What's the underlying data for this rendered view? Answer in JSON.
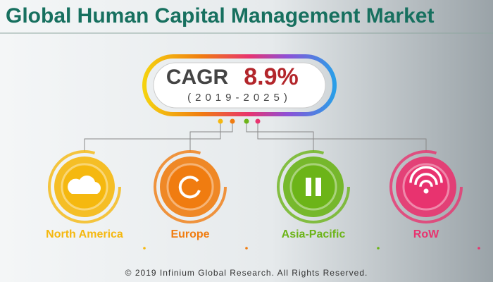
{
  "header": {
    "title": "Global Human Capital Management Market"
  },
  "cagr": {
    "label": "CAGR",
    "value": "8.9%",
    "period": "(2019-2025)"
  },
  "regions": [
    {
      "name": "North America",
      "color": "#f5b80f"
    },
    {
      "name": "Europe",
      "color": "#f07c10"
    },
    {
      "name": "Asia-Pacific",
      "color": "#6cb418"
    },
    {
      "name": "RoW",
      "color": "#e8336f"
    }
  ],
  "footer": {
    "text": "© 2019 Infinium Global Research. All Rights Reserved."
  }
}
